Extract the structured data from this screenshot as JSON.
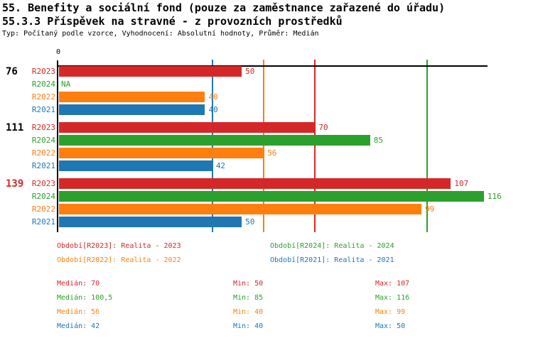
{
  "header": {
    "title_line1": "55. Benefity a sociální fond (pouze za zaměstnance zařazené do úřadu)",
    "title_line2": "55.3.3 Příspěvek na stravné - z provozních prostředků",
    "subtitle": "Typ: Počítaný podle vzorce, Vyhodnocení: Absolutní hodnoty, Průměr: Medián"
  },
  "series": {
    "R2023": {
      "color": "#d62728",
      "legend": "Období[R2023]: Realita - 2023"
    },
    "R2024": {
      "color": "#2ca02c",
      "legend": "Období[R2024]: Realita - 2024"
    },
    "R2022": {
      "color": "#ff7f0e",
      "legend": "Období[R2022]: Realita - 2022"
    },
    "R2021": {
      "color": "#1f77b4",
      "legend": "Období[R2021]: Realita - 2021"
    }
  },
  "chart_data": {
    "type": "bar",
    "orientation": "horizontal",
    "axis": {
      "zero_label": "0",
      "xmin": 0,
      "xmax": 117,
      "gridlines": false
    },
    "row_order": [
      "R2023",
      "R2024",
      "R2022",
      "R2021"
    ],
    "groups": [
      {
        "label": "76",
        "highlighted": false,
        "values": {
          "R2023": 50,
          "R2024": null,
          "R2022": 40,
          "R2021": 40
        },
        "value_labels": {
          "R2023": "50",
          "R2024": "NA",
          "R2022": "40",
          "R2021": "40"
        }
      },
      {
        "label": "111",
        "highlighted": false,
        "values": {
          "R2023": 70,
          "R2024": 85,
          "R2022": 56,
          "R2021": 42
        },
        "value_labels": {
          "R2023": "70",
          "R2024": "85",
          "R2022": "56",
          "R2021": "42"
        }
      },
      {
        "label": "139",
        "highlighted": true,
        "values": {
          "R2023": 107,
          "R2024": 116,
          "R2022": 99,
          "R2021": 50
        },
        "value_labels": {
          "R2023": "107",
          "R2024": "116",
          "R2022": "99",
          "R2021": "50"
        }
      }
    ],
    "median_lines": [
      {
        "series": "R2021",
        "value": 42
      },
      {
        "series": "R2022",
        "value": 56
      },
      {
        "series": "R2023",
        "value": 70
      },
      {
        "series": "R2024",
        "value": 100.5
      }
    ]
  },
  "legend_order": [
    "R2023",
    "R2024",
    "R2022",
    "R2021"
  ],
  "stats": [
    {
      "series": "R2023",
      "median": "Medián: 70",
      "min": "Min: 50",
      "max": "Max: 107"
    },
    {
      "series": "R2024",
      "median": "Medián: 100,5",
      "min": "Min: 85",
      "max": "Max: 116"
    },
    {
      "series": "R2022",
      "median": "Medián: 56",
      "min": "Min: 40",
      "max": "Max: 99"
    },
    {
      "series": "R2021",
      "median": "Medián: 42",
      "min": "Min: 40",
      "max": "Max: 50"
    }
  ],
  "highlight_color": "#d62728",
  "text_color": "#000000"
}
